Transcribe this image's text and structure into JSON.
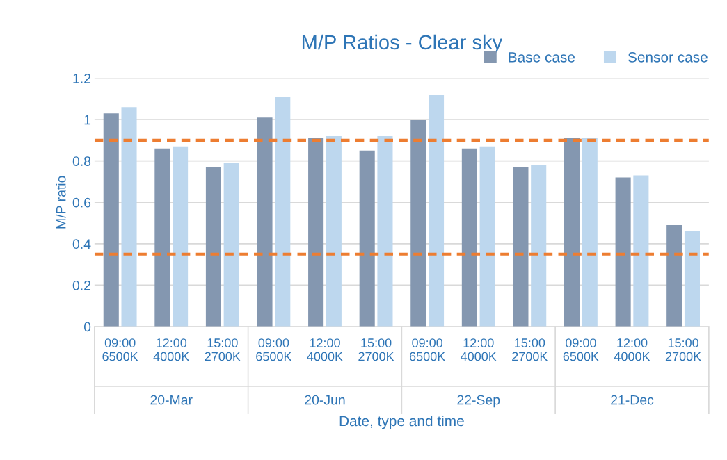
{
  "chart_data": {
    "type": "bar",
    "title": "M/P Ratios - Clear sky",
    "xlabel": "Date, type and time",
    "ylabel": "M/P ratio",
    "categories": [
      "09:00\n6500K",
      "12:00\n4000K",
      "15:00\n2700K",
      "09:00\n6500K",
      "12:00\n4000K",
      "15:00\n2700K",
      "09:00\n6500K",
      "12:00\n4000K",
      "15:00\n2700K",
      "09:00\n6500K",
      "12:00\n4000K",
      "15:00\n2700K"
    ],
    "series": [
      {
        "name": "Base case",
        "color": "#8497b0",
        "values": [
          1.03,
          0.86,
          0.77,
          1.01,
          0.91,
          0.85,
          1.0,
          0.86,
          0.77,
          0.91,
          0.72,
          0.49
        ]
      },
      {
        "name": "Sensor case",
        "color": "#bdd7ee",
        "values": [
          1.06,
          0.87,
          0.79,
          1.11,
          0.92,
          0.92,
          1.12,
          0.87,
          0.78,
          0.91,
          0.73,
          0.46
        ]
      }
    ],
    "annotations": [
      "20-Mar",
      "20-Jun",
      "22-Sep",
      "21-Dec"
    ],
    "ylim": [
      0,
      1.2
    ],
    "yticks": [
      {
        "value": 0,
        "label": "0"
      },
      0.2,
      0.4,
      0.6,
      0.8,
      {
        "value": 1,
        "label": "1"
      },
      1.2
    ],
    "ref_lines": [
      {
        "axis": "y",
        "value": 0.9,
        "label": null,
        "color": "#ed7d31",
        "line_style": "dashed"
      },
      {
        "axis": "y",
        "value": 0.35,
        "label": null,
        "color": "#ed7d31",
        "line_style": "dashed"
      }
    ],
    "grid": "y",
    "legend": "top right"
  }
}
